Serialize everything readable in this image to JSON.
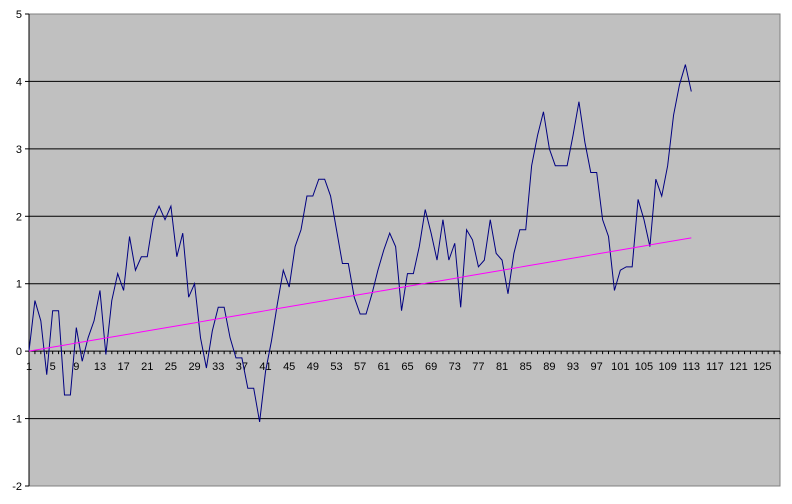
{
  "chart_data": {
    "type": "line",
    "title": "",
    "xlabel": "",
    "ylabel": "",
    "xlim": [
      1,
      128
    ],
    "ylim": [
      -2,
      5
    ],
    "grid": true,
    "legend": "none",
    "plot_background": "#c0c0c0",
    "x_tick_labels": [
      "1",
      "5",
      "9",
      "13",
      "17",
      "21",
      "25",
      "29",
      "33",
      "37",
      "41",
      "45",
      "49",
      "53",
      "57",
      "61",
      "65",
      "69",
      "73",
      "77",
      "81",
      "85",
      "89",
      "93",
      "97",
      "101",
      "105",
      "109",
      "113",
      "117",
      "121",
      "125"
    ],
    "y_tick_labels": [
      "-2",
      "-1",
      "0",
      "1",
      "2",
      "3",
      "4",
      "5"
    ],
    "series": [
      {
        "color": "#000080",
        "values": [
          0,
          0.75,
          0.45,
          -0.35,
          0.6,
          0.6,
          -0.65,
          -0.65,
          0.35,
          -0.15,
          0.2,
          0.45,
          0.9,
          -0.05,
          0.75,
          1.15,
          0.9,
          1.7,
          1.2,
          1.4,
          1.4,
          1.95,
          2.15,
          1.95,
          2.15,
          1.4,
          1.75,
          0.8,
          1.0,
          0.2,
          -0.25,
          0.3,
          0.65,
          0.65,
          0.2,
          -0.1,
          -0.1,
          -0.55,
          -0.55,
          -1.05,
          -0.3,
          0.15,
          0.7,
          1.2,
          0.95,
          1.55,
          1.8,
          2.3,
          2.3,
          2.55,
          2.55,
          2.3,
          1.8,
          1.3,
          1.3,
          0.8,
          0.55,
          0.55,
          0.85,
          1.2,
          1.5,
          1.75,
          1.55,
          0.6,
          1.15,
          1.15,
          1.55,
          2.1,
          1.75,
          1.35,
          1.95,
          1.35,
          1.6,
          0.65,
          1.8,
          1.65,
          1.25,
          1.35,
          1.95,
          1.45,
          1.35,
          0.85,
          1.45,
          1.8,
          1.8,
          2.75,
          3.2,
          3.55,
          3.0,
          2.75,
          2.75,
          2.75,
          3.2,
          3.7,
          3.1,
          2.65,
          2.65,
          1.95,
          1.7,
          0.9,
          1.2,
          1.25,
          1.25,
          2.25,
          1.95,
          1.55,
          2.55,
          2.3,
          2.75,
          3.5,
          3.95,
          4.25,
          3.85
        ]
      },
      {
        "color": "#ff00ff",
        "values": [
          0,
          0.015,
          0.03,
          0.045,
          0.06,
          0.075,
          0.09,
          0.105,
          0.12,
          0.135,
          0.15,
          0.165,
          0.18,
          0.195,
          0.21,
          0.225,
          0.24,
          0.255,
          0.27,
          0.285,
          0.3,
          0.315,
          0.33,
          0.345,
          0.36,
          0.375,
          0.39,
          0.405,
          0.42,
          0.435,
          0.45,
          0.465,
          0.48,
          0.495,
          0.51,
          0.525,
          0.54,
          0.555,
          0.57,
          0.585,
          0.6,
          0.615,
          0.63,
          0.645,
          0.66,
          0.675,
          0.69,
          0.705,
          0.72,
          0.735,
          0.75,
          0.765,
          0.78,
          0.795,
          0.81,
          0.825,
          0.84,
          0.855,
          0.87,
          0.885,
          0.9,
          0.915,
          0.93,
          0.945,
          0.96,
          0.975,
          0.99,
          1.005,
          1.02,
          1.035,
          1.05,
          1.065,
          1.08,
          1.095,
          1.11,
          1.125,
          1.14,
          1.155,
          1.17,
          1.185,
          1.2,
          1.215,
          1.23,
          1.245,
          1.26,
          1.275,
          1.29,
          1.305,
          1.32,
          1.335,
          1.35,
          1.365,
          1.38,
          1.395,
          1.41,
          1.425,
          1.44,
          1.455,
          1.47,
          1.485,
          1.5,
          1.515,
          1.53,
          1.545,
          1.56,
          1.575,
          1.59,
          1.605,
          1.62,
          1.635,
          1.65,
          1.665,
          1.68
        ]
      }
    ]
  }
}
